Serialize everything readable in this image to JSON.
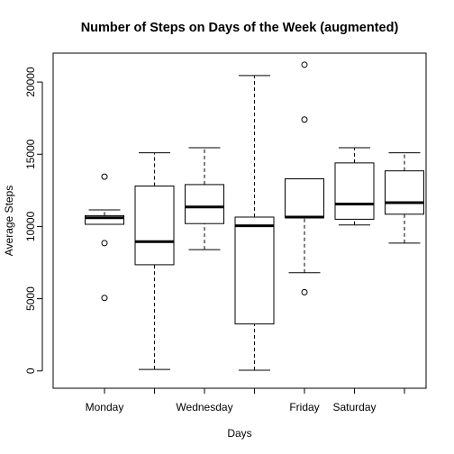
{
  "chart_data": {
    "type": "box",
    "title": "Number of Steps on Days of the Week (augmented)",
    "xlabel": "Days",
    "ylabel": "Average Steps",
    "ylim": [
      -1200,
      22000
    ],
    "yticks": [
      0,
      5000,
      10000,
      15000,
      20000
    ],
    "categories": [
      "Monday",
      "",
      "Wednesday",
      "",
      "Friday",
      "Saturday",
      ""
    ],
    "boxes": [
      {
        "whisker_low": 10150,
        "q1": 10150,
        "median": 10600,
        "q3": 10750,
        "whisker_high": 11150,
        "outliers": [
          13450,
          8850,
          5050
        ]
      },
      {
        "whisker_low": 100,
        "q1": 7350,
        "median": 8950,
        "q3": 12800,
        "whisker_high": 15100,
        "outliers": []
      },
      {
        "whisker_low": 8400,
        "q1": 10200,
        "median": 11350,
        "q3": 12900,
        "whisker_high": 15450,
        "outliers": []
      },
      {
        "whisker_low": 50,
        "q1": 3250,
        "median": 10050,
        "q3": 10650,
        "whisker_high": 20450,
        "outliers": []
      },
      {
        "whisker_low": 6800,
        "q1": 10600,
        "median": 10650,
        "q3": 13300,
        "whisker_high": 13300,
        "outliers": [
          21200,
          17400,
          5450
        ]
      },
      {
        "whisker_low": 10100,
        "q1": 10500,
        "median": 11550,
        "q3": 14400,
        "whisker_high": 15450,
        "outliers": []
      },
      {
        "whisker_low": 8850,
        "q1": 10850,
        "median": 11650,
        "q3": 13850,
        "whisker_high": 15100,
        "outliers": []
      }
    ],
    "grid": false,
    "legend": "none"
  }
}
